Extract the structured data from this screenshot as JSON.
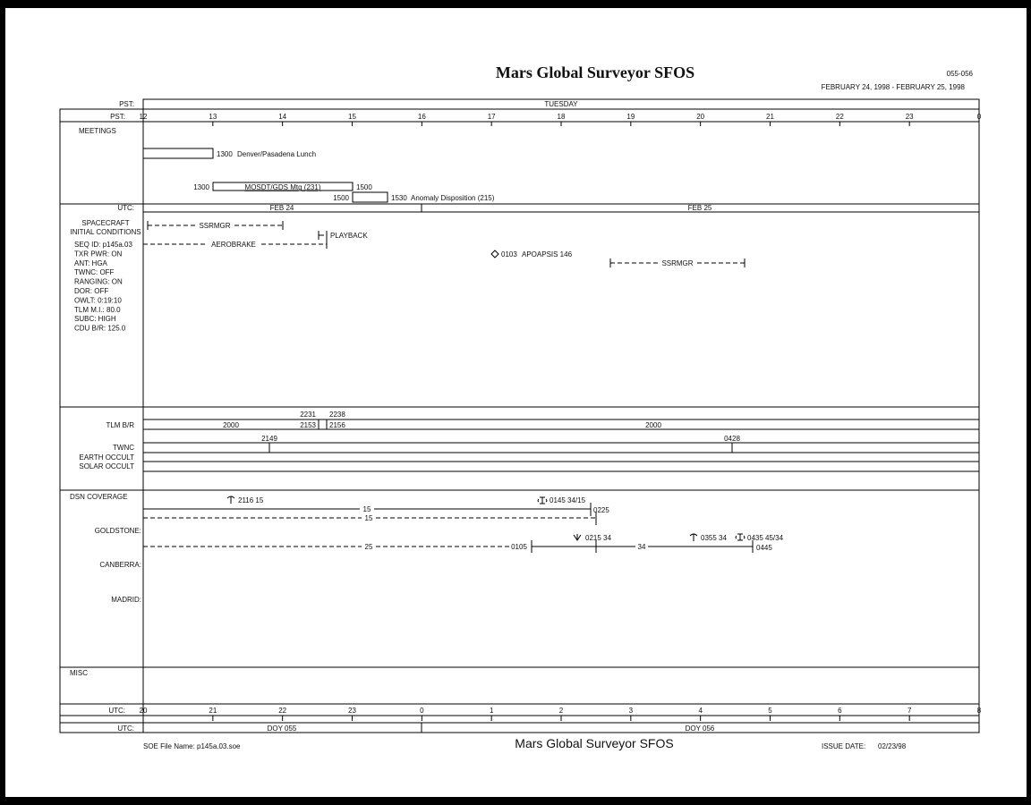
{
  "header": {
    "title": "Mars Global Surveyor SFOS",
    "doc_number": "055-056",
    "date_range": "FEBRUARY 24, 1998 - FEBRUARY 25, 1998"
  },
  "rows": {
    "pst_day_label": "PST:",
    "pst_day": "TUESDAY",
    "pst_hours_label": "PST:",
    "pst_hours": [
      "12",
      "13",
      "14",
      "15",
      "16",
      "17",
      "18",
      "19",
      "20",
      "21",
      "22",
      "23",
      "0"
    ],
    "utc_date_label": "UTC:",
    "utc_dates": [
      "FEB 24",
      "FEB 25"
    ],
    "utc_hours_label": "UTC:",
    "utc_hours": [
      "20",
      "21",
      "22",
      "23",
      "0",
      "1",
      "2",
      "3",
      "4",
      "5",
      "6",
      "7",
      "8"
    ],
    "utc_doy_label": "UTC:",
    "utc_doy": [
      "DOY 055",
      "DOY 056"
    ]
  },
  "meetings": {
    "label": "MEETINGS",
    "items": [
      {
        "start": "",
        "end": "1300",
        "title": "Denver/Pasadena Lunch"
      },
      {
        "start": "1300",
        "end": "1500",
        "title": "MOSDT/GDS Mtg (231)"
      },
      {
        "start": "1500",
        "end": "1530",
        "title": "Anomaly Disposition (215)"
      }
    ]
  },
  "spacecraft": {
    "label1": "SPACECRAFT",
    "label2": "INITIAL CONDITIONS",
    "conditions": [
      "SEQ ID: p145a.03",
      "TXR PWR: ON",
      "ANT: HGA",
      "TWNC: OFF",
      "RANGING: ON",
      "DOR: OFF",
      "OWLT: 0:19:10",
      "TLM M.I.: 80.0",
      "SUBC: HIGH",
      "CDU B/R: 125.0"
    ],
    "events": {
      "ssrmgr1": "SSRMGR",
      "playback": "PLAYBACK",
      "aerobrake": "AEROBRAKE",
      "apoapsis_time": "0103",
      "apoapsis": "APOAPSIS 146",
      "ssrmgr2": "SSRMGR"
    }
  },
  "telemetry": {
    "tlm_label": "TLM B/R",
    "tlm_values": [
      "2000",
      "2000"
    ],
    "tlm_marks": [
      "2231",
      "2238",
      "2153",
      "2156"
    ],
    "twnc_label": "TWNC",
    "twnc_marks": [
      "2149",
      "0428"
    ],
    "earth_occult": "EARTH OCCULT",
    "solar_occult": "SOLAR OCCULT"
  },
  "dsn": {
    "label": "DSN COVERAGE",
    "goldstone": "GOLDSTONE:",
    "canberra": "CANBERRA:",
    "madrid": "MADRID:",
    "events": {
      "rise1": "2116  15",
      "hand1": "0145  34/15",
      "line1": "15",
      "end1": "0225",
      "line2": "15",
      "line3": "25",
      "start3": "0105",
      "set3": "0215  34",
      "line4": "34",
      "rise4": "0355  34",
      "hand4": "0435  45/34",
      "end4": "0445"
    }
  },
  "misc": {
    "label": "MISC"
  },
  "footer": {
    "file": "SOE File Name: p145a.03.soe",
    "title": "Mars Global Surveyor SFOS",
    "issue_label": "ISSUE DATE:",
    "issue_date": "02/23/98"
  }
}
